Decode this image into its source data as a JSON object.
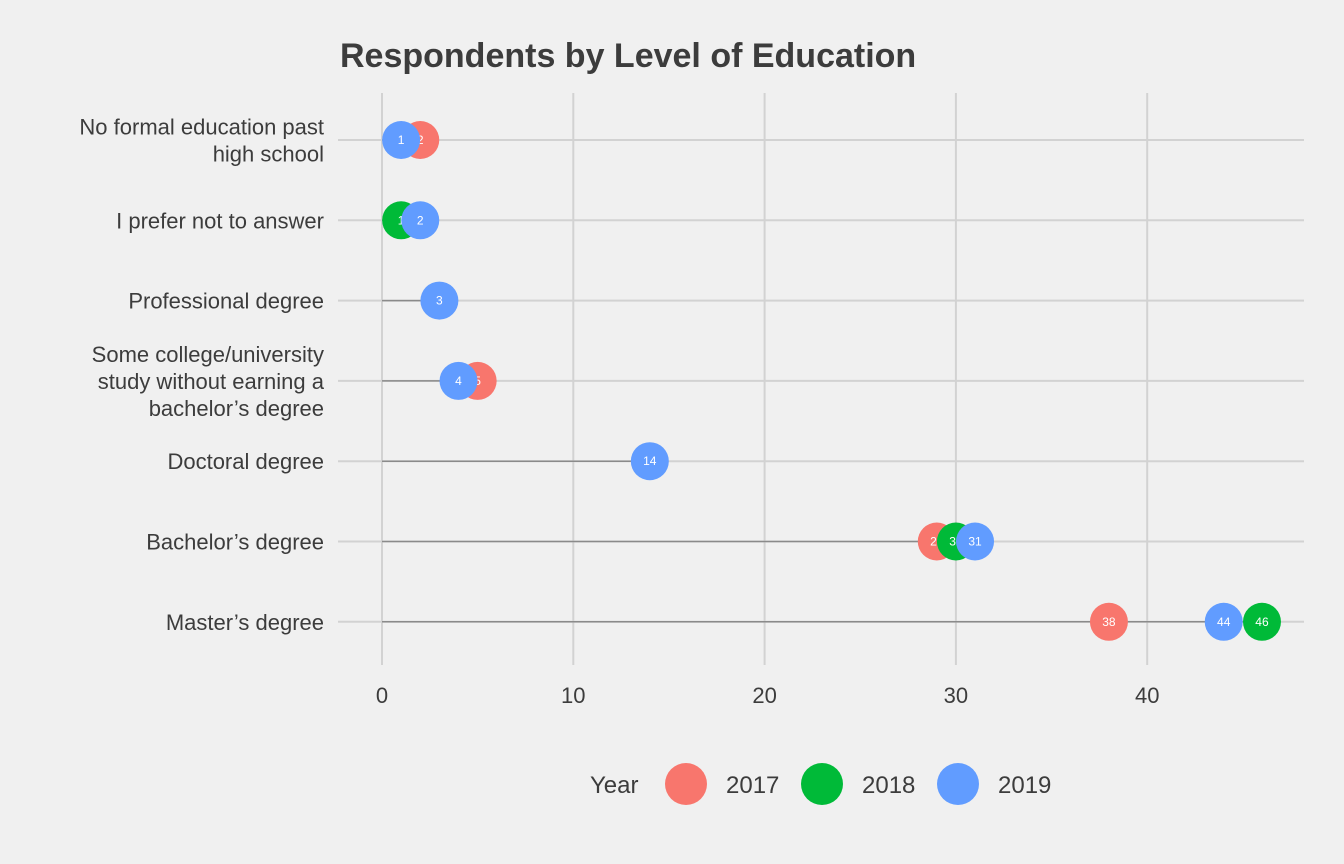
{
  "chart_data": {
    "type": "dot",
    "title": "Respondents by Level of Education",
    "xlabel": "",
    "ylabel": "",
    "xlim": [
      -2,
      48
    ],
    "x_ticks": [
      "0",
      "10",
      "20",
      "30",
      "40"
    ],
    "categories": [
      [
        "No formal education past",
        "high school"
      ],
      [
        "I prefer not to answer"
      ],
      [
        "Professional degree"
      ],
      [
        "Some college/university",
        "study without earning a",
        "bachelor’s degree"
      ],
      [
        "Doctoral degree"
      ],
      [
        "Bachelor’s degree"
      ],
      [
        "Master’s degree"
      ]
    ],
    "series": [
      {
        "name": "2017",
        "color": "#F8766D",
        "values": [
          2,
          null,
          null,
          5,
          null,
          29,
          38
        ]
      },
      {
        "name": "2018",
        "color": "#00BA38",
        "values": [
          null,
          1,
          null,
          null,
          null,
          30,
          46
        ]
      },
      {
        "name": "2019",
        "color": "#619CFF",
        "values": [
          1,
          2,
          3,
          4,
          14,
          31,
          44
        ]
      }
    ],
    "legend": {
      "title": "Year",
      "position": "bottom"
    },
    "grid": true
  }
}
